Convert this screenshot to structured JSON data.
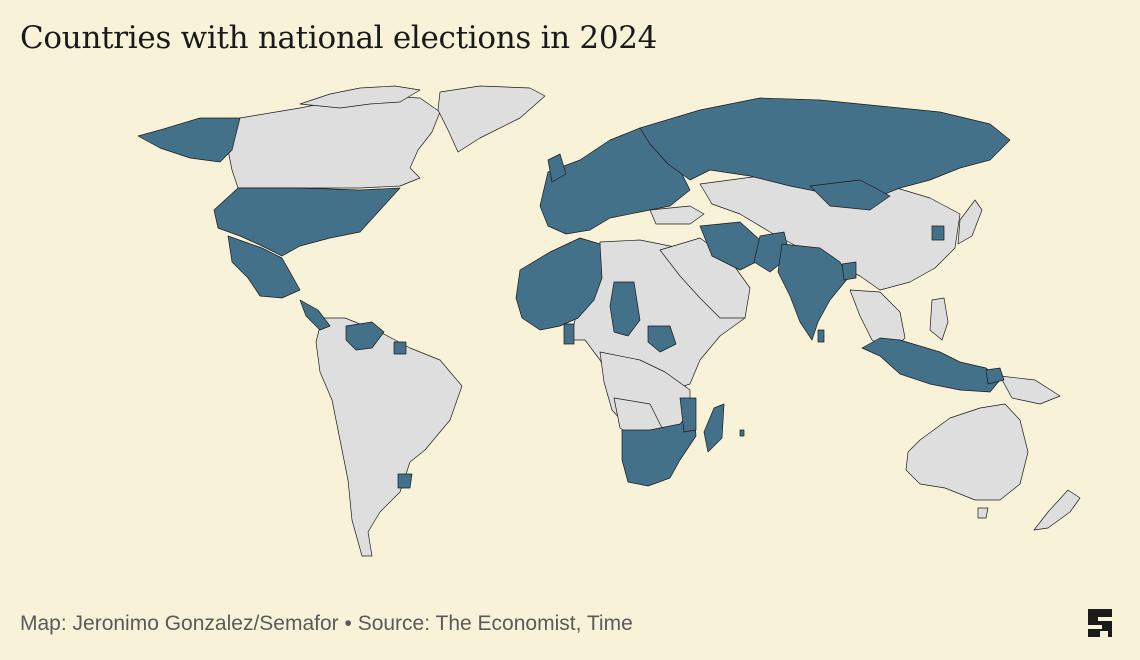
{
  "title": "Countries with national elections in 2024",
  "footer": {
    "credit": "Map: Jeronimo Gonzalez/Semafor",
    "separator": "•",
    "source": "Source: The Economist, Time"
  },
  "logo": {
    "icon": "semafor-logo",
    "letter": "S"
  },
  "colors": {
    "background": "#f8f3d8",
    "election": "#44718a",
    "no_election": "#dedede",
    "border": "#1b1b1b"
  }
}
